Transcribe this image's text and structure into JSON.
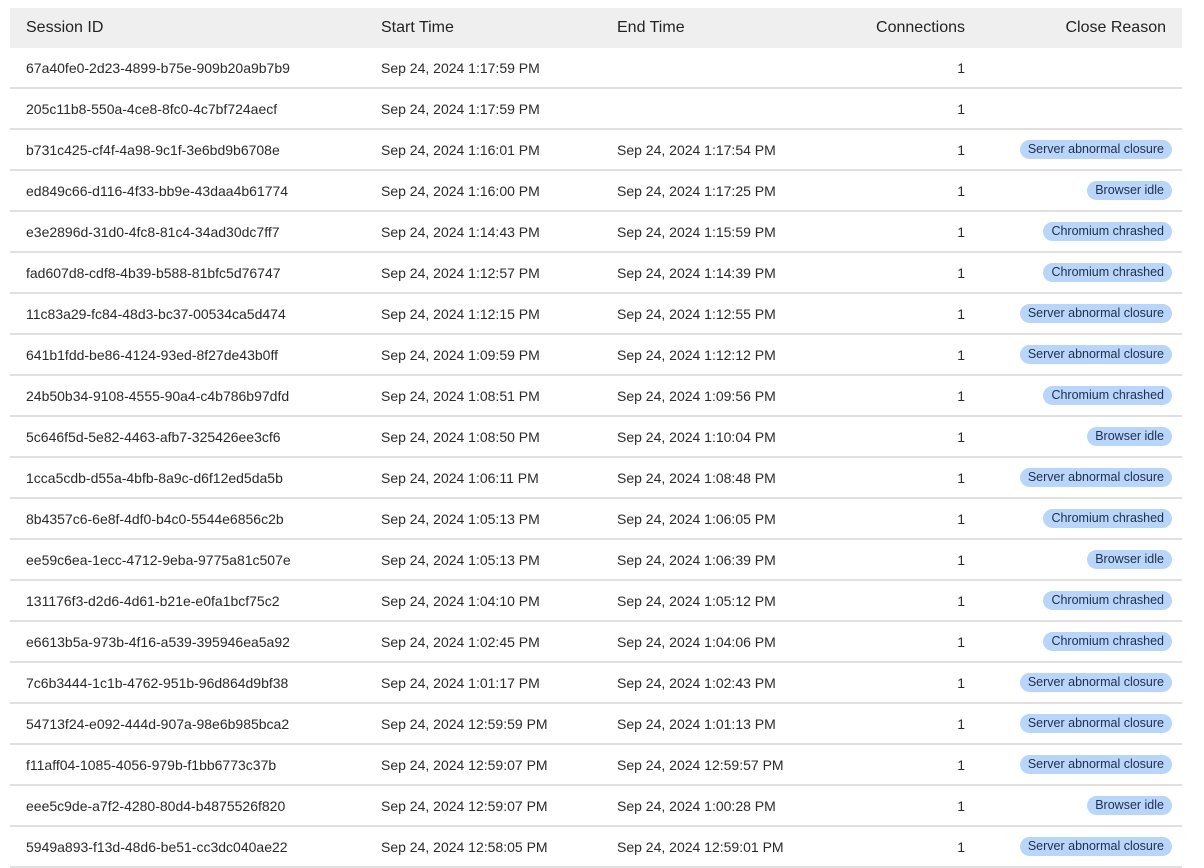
{
  "columns": {
    "session_id": "Session ID",
    "start_time": "Start Time",
    "end_time": "End Time",
    "connections": "Connections",
    "close_reason": "Close Reason"
  },
  "badge_color": "#b9d5f9",
  "rows": [
    {
      "id": "67a40fe0-2d23-4899-b75e-909b20a9b7b9",
      "start": "Sep 24, 2024 1:17:59 PM",
      "end": "",
      "connections": "1",
      "reason": ""
    },
    {
      "id": "205c11b8-550a-4ce8-8fc0-4c7bf724aecf",
      "start": "Sep 24, 2024 1:17:59 PM",
      "end": "",
      "connections": "1",
      "reason": ""
    },
    {
      "id": "b731c425-cf4f-4a98-9c1f-3e6bd9b6708e",
      "start": "Sep 24, 2024 1:16:01 PM",
      "end": "Sep 24, 2024 1:17:54 PM",
      "connections": "1",
      "reason": "Server abnormal closure"
    },
    {
      "id": "ed849c66-d116-4f33-bb9e-43daa4b61774",
      "start": "Sep 24, 2024 1:16:00 PM",
      "end": "Sep 24, 2024 1:17:25 PM",
      "connections": "1",
      "reason": "Browser idle"
    },
    {
      "id": "e3e2896d-31d0-4fc8-81c4-34ad30dc7ff7",
      "start": "Sep 24, 2024 1:14:43 PM",
      "end": "Sep 24, 2024 1:15:59 PM",
      "connections": "1",
      "reason": "Chromium chrashed"
    },
    {
      "id": "fad607d8-cdf8-4b39-b588-81bfc5d76747",
      "start": "Sep 24, 2024 1:12:57 PM",
      "end": "Sep 24, 2024 1:14:39 PM",
      "connections": "1",
      "reason": "Chromium chrashed"
    },
    {
      "id": "11c83a29-fc84-48d3-bc37-00534ca5d474",
      "start": "Sep 24, 2024 1:12:15 PM",
      "end": "Sep 24, 2024 1:12:55 PM",
      "connections": "1",
      "reason": "Server abnormal closure"
    },
    {
      "id": "641b1fdd-be86-4124-93ed-8f27de43b0ff",
      "start": "Sep 24, 2024 1:09:59 PM",
      "end": "Sep 24, 2024 1:12:12 PM",
      "connections": "1",
      "reason": "Server abnormal closure"
    },
    {
      "id": "24b50b34-9108-4555-90a4-c4b786b97dfd",
      "start": "Sep 24, 2024 1:08:51 PM",
      "end": "Sep 24, 2024 1:09:56 PM",
      "connections": "1",
      "reason": "Chromium chrashed"
    },
    {
      "id": "5c646f5d-5e82-4463-afb7-325426ee3cf6",
      "start": "Sep 24, 2024 1:08:50 PM",
      "end": "Sep 24, 2024 1:10:04 PM",
      "connections": "1",
      "reason": "Browser idle"
    },
    {
      "id": "1cca5cdb-d55a-4bfb-8a9c-d6f12ed5da5b",
      "start": "Sep 24, 2024 1:06:11 PM",
      "end": "Sep 24, 2024 1:08:48 PM",
      "connections": "1",
      "reason": "Server abnormal closure"
    },
    {
      "id": "8b4357c6-6e8f-4df0-b4c0-5544e6856c2b",
      "start": "Sep 24, 2024 1:05:13 PM",
      "end": "Sep 24, 2024 1:06:05 PM",
      "connections": "1",
      "reason": "Chromium chrashed"
    },
    {
      "id": "ee59c6ea-1ecc-4712-9eba-9775a81c507e",
      "start": "Sep 24, 2024 1:05:13 PM",
      "end": "Sep 24, 2024 1:06:39 PM",
      "connections": "1",
      "reason": "Browser idle"
    },
    {
      "id": "131176f3-d2d6-4d61-b21e-e0fa1bcf75c2",
      "start": "Sep 24, 2024 1:04:10 PM",
      "end": "Sep 24, 2024 1:05:12 PM",
      "connections": "1",
      "reason": "Chromium chrashed"
    },
    {
      "id": "e6613b5a-973b-4f16-a539-395946ea5a92",
      "start": "Sep 24, 2024 1:02:45 PM",
      "end": "Sep 24, 2024 1:04:06 PM",
      "connections": "1",
      "reason": "Chromium chrashed"
    },
    {
      "id": "7c6b3444-1c1b-4762-951b-96d864d9bf38",
      "start": "Sep 24, 2024 1:01:17 PM",
      "end": "Sep 24, 2024 1:02:43 PM",
      "connections": "1",
      "reason": "Server abnormal closure"
    },
    {
      "id": "54713f24-e092-444d-907a-98e6b985bca2",
      "start": "Sep 24, 2024 12:59:59 PM",
      "end": "Sep 24, 2024 1:01:13 PM",
      "connections": "1",
      "reason": "Server abnormal closure"
    },
    {
      "id": "f11aff04-1085-4056-979b-f1bb6773c37b",
      "start": "Sep 24, 2024 12:59:07 PM",
      "end": "Sep 24, 2024 12:59:57 PM",
      "connections": "1",
      "reason": "Server abnormal closure"
    },
    {
      "id": "eee5c9de-a7f2-4280-80d4-b4875526f820",
      "start": "Sep 24, 2024 12:59:07 PM",
      "end": "Sep 24, 2024 1:00:28 PM",
      "connections": "1",
      "reason": "Browser idle"
    },
    {
      "id": "5949a893-f13d-48d6-be51-cc3dc040ae22",
      "start": "Sep 24, 2024 12:58:05 PM",
      "end": "Sep 24, 2024 12:59:01 PM",
      "connections": "1",
      "reason": "Server abnormal closure"
    }
  ]
}
